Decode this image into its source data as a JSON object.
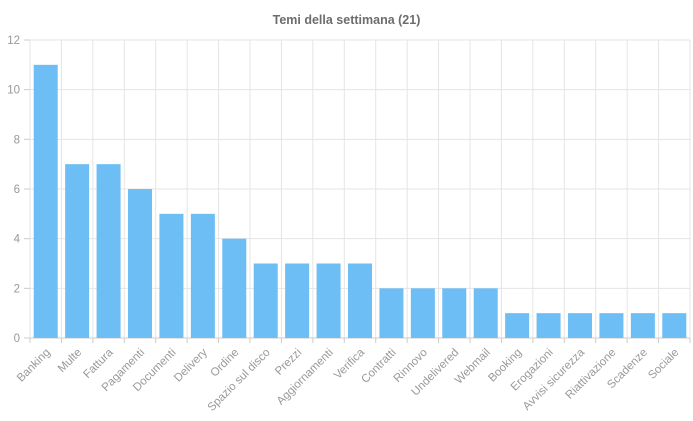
{
  "chart_data": {
    "type": "bar",
    "title": "Temi della settimana (21)",
    "categories": [
      "Banking",
      "Multe",
      "Fattura",
      "Pagamenti",
      "Documenti",
      "Delivery",
      "Ordine",
      "Spazio sul disco",
      "Prezzi",
      "Aggiornamenti",
      "Verifica",
      "Contratti",
      "Rinnovo",
      "Undelivered",
      "Webmail",
      "Booking",
      "Erogazioni",
      "Avvisi sicurezza",
      "Riattivazione",
      "Scadenze",
      "Sociale"
    ],
    "values": [
      11,
      7,
      7,
      6,
      5,
      5,
      4,
      3,
      3,
      3,
      3,
      2,
      2,
      2,
      2,
      1,
      1,
      1,
      1,
      1,
      1
    ],
    "xlabel": "",
    "ylabel": "",
    "ylim": [
      0,
      12
    ],
    "yticks": [
      0,
      2,
      4,
      6,
      8,
      10,
      12
    ],
    "grid": true,
    "legend": false,
    "x_label_rotation_deg": -45,
    "colors": {
      "bar": "#6CBEF4",
      "grid": "#E5E5E5",
      "axis_line": "#CCCCCC",
      "tick_label": "#999999",
      "title": "#6D6D6D",
      "background": "#FFFFFF"
    }
  }
}
